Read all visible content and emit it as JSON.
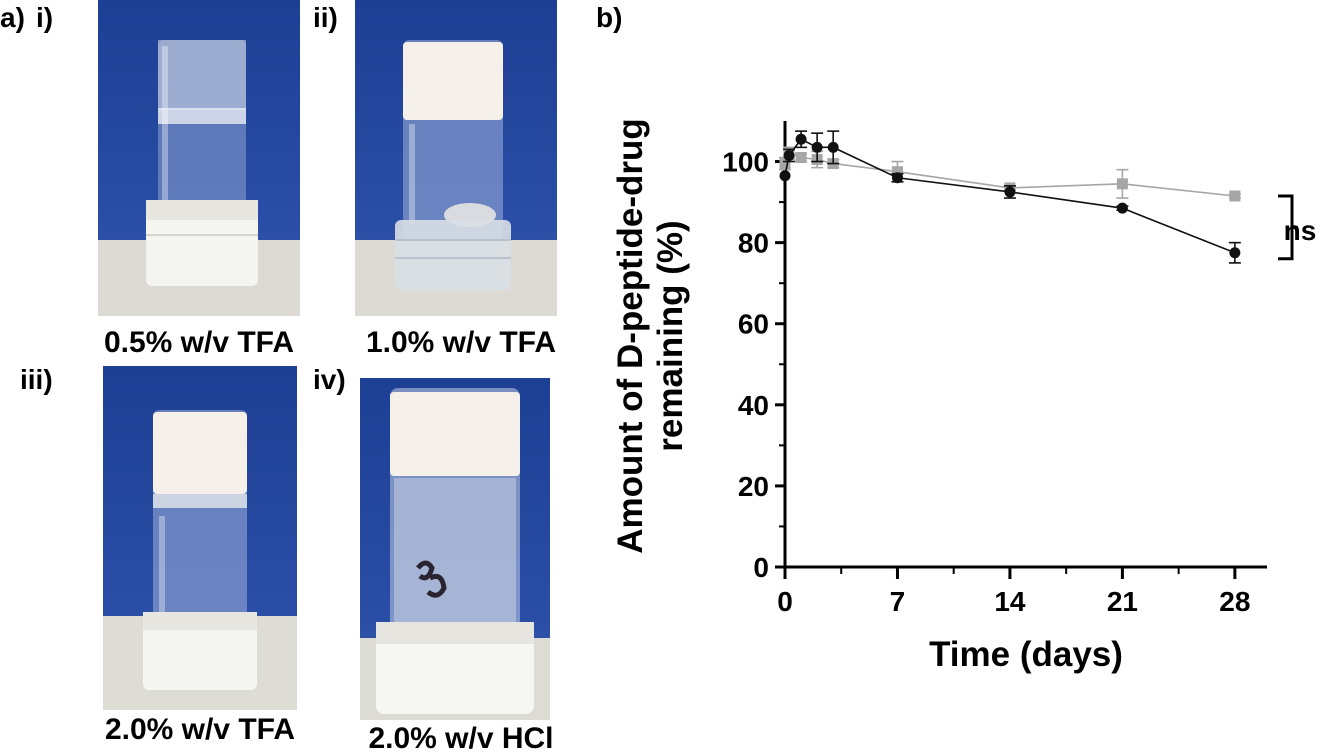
{
  "panel_a": {
    "label": "a)",
    "photos": [
      {
        "roman": "i)",
        "caption": "0.5% w/v TFA"
      },
      {
        "roman": "ii)",
        "caption": "1.0% w/v TFA"
      },
      {
        "roman": "iii)",
        "caption": "2.0% w/v TFA"
      },
      {
        "roman": "iv)",
        "caption": "2.0% w/v HCl"
      }
    ]
  },
  "panel_b": {
    "label": "b)",
    "significance": "ns"
  },
  "colors": {
    "series_black": "#111111",
    "series_gray": "#a6a6a6",
    "photo_background": "#1c3f95"
  },
  "chart_data": {
    "type": "line",
    "xlabel": "Time (days)",
    "ylabel_line1": "Amount of D-peptide-drug",
    "ylabel_line2": "remaining (%)",
    "xlim": [
      0,
      30
    ],
    "ylim": [
      0,
      110
    ],
    "xticks": [
      0,
      7,
      14,
      21,
      28
    ],
    "yticks": [
      0,
      20,
      40,
      60,
      80,
      100
    ],
    "grid": false,
    "series": [
      {
        "marker": "circle",
        "color": "#111111",
        "points": [
          {
            "x": 0,
            "y": 96.5,
            "err": 0
          },
          {
            "x": 0.25,
            "y": 101.5,
            "err": 1.5
          },
          {
            "x": 1,
            "y": 105.5,
            "err": 2
          },
          {
            "x": 2,
            "y": 103.5,
            "err": 3.5
          },
          {
            "x": 3,
            "y": 103.5,
            "err": 4
          },
          {
            "x": 7,
            "y": 96,
            "err": 1
          },
          {
            "x": 14,
            "y": 92.5,
            "err": 1.5
          },
          {
            "x": 21,
            "y": 88.5,
            "err": 0.5
          },
          {
            "x": 28,
            "y": 77.5,
            "err": 2.5
          }
        ]
      },
      {
        "marker": "square",
        "color": "#a6a6a6",
        "points": [
          {
            "x": 0,
            "y": 99.5,
            "err": 1.5
          },
          {
            "x": 0.25,
            "y": 102,
            "err": 1.5
          },
          {
            "x": 1,
            "y": 101,
            "err": 1
          },
          {
            "x": 2,
            "y": 100.5,
            "err": 2
          },
          {
            "x": 3,
            "y": 99.5,
            "err": 1
          },
          {
            "x": 7,
            "y": 97.5,
            "err": 2.5
          },
          {
            "x": 14,
            "y": 93.5,
            "err": 0.5
          },
          {
            "x": 21,
            "y": 94.5,
            "err": 3.5
          },
          {
            "x": 28,
            "y": 91.5,
            "err": 0.5
          }
        ]
      }
    ]
  }
}
